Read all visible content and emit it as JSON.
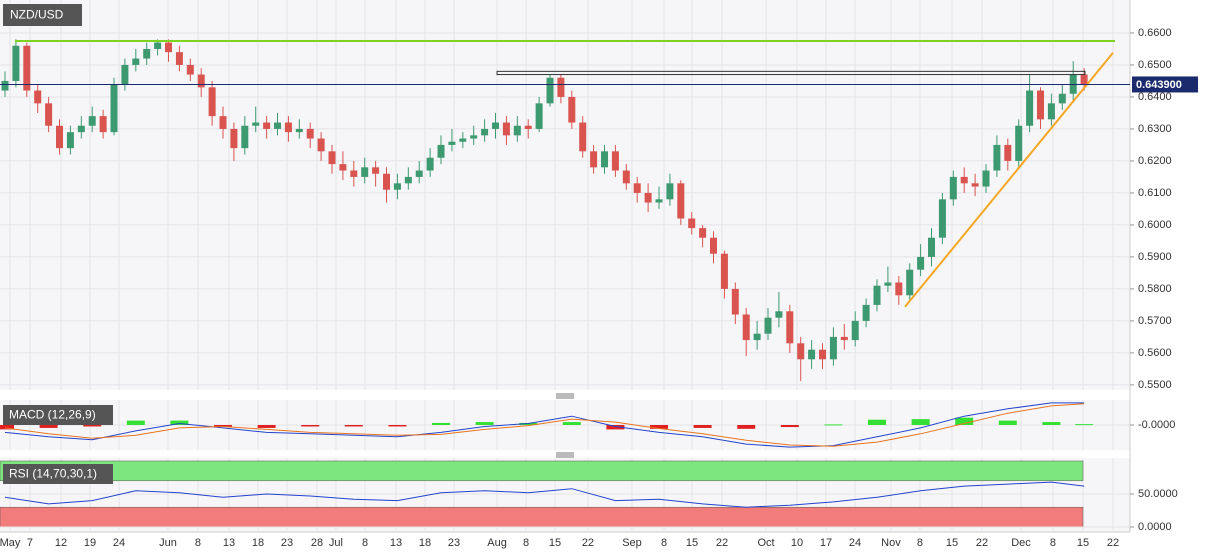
{
  "chart_data": [
    {
      "type": "candlestick",
      "title": "NZD/USD",
      "open": [
        0.642,
        0.645,
        0.656,
        0.642,
        0.638,
        0.631,
        0.624,
        0.629,
        0.631,
        0.634,
        0.629,
        0.644,
        0.65,
        0.652,
        0.655,
        0.657,
        0.654,
        0.65,
        0.647,
        0.643,
        0.634,
        0.63,
        0.624,
        0.631,
        0.632,
        0.63,
        0.632,
        0.629,
        0.63,
        0.627,
        0.623,
        0.619,
        0.617,
        0.615,
        0.618,
        0.616,
        0.611,
        0.613,
        0.615,
        0.617,
        0.621,
        0.625,
        0.626,
        0.627,
        0.628,
        0.63,
        0.632,
        0.628,
        0.631,
        0.63,
        0.638,
        0.646,
        0.64,
        0.632,
        0.623,
        0.618,
        0.623,
        0.617,
        0.613,
        0.61,
        0.607,
        0.608,
        0.613,
        0.602,
        0.599,
        0.596,
        0.591,
        0.58,
        0.572,
        0.564,
        0.566,
        0.571,
        0.573,
        0.563,
        0.558,
        0.561,
        0.558,
        0.565,
        0.564,
        0.57,
        0.575,
        0.581,
        0.582,
        0.578,
        0.586,
        0.59,
        0.596,
        0.608,
        0.615,
        0.613,
        0.612,
        0.617,
        0.625,
        0.62,
        0.631,
        0.642,
        0.633,
        0.638,
        0.641,
        0.647
      ],
      "high": [
        0.648,
        0.658,
        0.657,
        0.644,
        0.64,
        0.633,
        0.631,
        0.634,
        0.637,
        0.636,
        0.646,
        0.652,
        0.655,
        0.657,
        0.658,
        0.658,
        0.656,
        0.652,
        0.649,
        0.645,
        0.637,
        0.632,
        0.634,
        0.637,
        0.634,
        0.635,
        0.634,
        0.633,
        0.632,
        0.629,
        0.625,
        0.623,
        0.62,
        0.621,
        0.62,
        0.618,
        0.616,
        0.618,
        0.62,
        0.624,
        0.628,
        0.63,
        0.629,
        0.631,
        0.633,
        0.635,
        0.634,
        0.634,
        0.633,
        0.64,
        0.647,
        0.647,
        0.642,
        0.634,
        0.625,
        0.625,
        0.625,
        0.619,
        0.615,
        0.613,
        0.612,
        0.616,
        0.614,
        0.604,
        0.6,
        0.598,
        0.592,
        0.582,
        0.574,
        0.57,
        0.574,
        0.579,
        0.575,
        0.565,
        0.564,
        0.563,
        0.568,
        0.569,
        0.573,
        0.577,
        0.583,
        0.587,
        0.584,
        0.588,
        0.594,
        0.599,
        0.61,
        0.617,
        0.618,
        0.616,
        0.619,
        0.628,
        0.627,
        0.633,
        0.647,
        0.643,
        0.641,
        0.644,
        0.6512,
        0.649
      ],
      "low": [
        0.64,
        0.643,
        0.64,
        0.635,
        0.629,
        0.622,
        0.622,
        0.627,
        0.629,
        0.627,
        0.628,
        0.642,
        0.648,
        0.65,
        0.653,
        0.651,
        0.648,
        0.645,
        0.64,
        0.631,
        0.627,
        0.62,
        0.622,
        0.629,
        0.627,
        0.628,
        0.626,
        0.627,
        0.624,
        0.62,
        0.616,
        0.614,
        0.612,
        0.613,
        0.612,
        0.607,
        0.608,
        0.611,
        0.613,
        0.615,
        0.619,
        0.623,
        0.624,
        0.625,
        0.626,
        0.627,
        0.625,
        0.626,
        0.627,
        0.629,
        0.637,
        0.638,
        0.63,
        0.621,
        0.616,
        0.616,
        0.615,
        0.611,
        0.607,
        0.604,
        0.605,
        0.606,
        0.6,
        0.597,
        0.593,
        0.588,
        0.577,
        0.569,
        0.559,
        0.561,
        0.564,
        0.568,
        0.56,
        0.5512,
        0.555,
        0.555,
        0.556,
        0.561,
        0.562,
        0.568,
        0.573,
        0.579,
        0.575,
        0.576,
        0.584,
        0.587,
        0.594,
        0.606,
        0.61,
        0.609,
        0.61,
        0.615,
        0.617,
        0.618,
        0.629,
        0.63,
        0.631,
        0.636,
        0.639,
        0.642
      ],
      "close": [
        0.645,
        0.656,
        0.642,
        0.638,
        0.631,
        0.624,
        0.629,
        0.631,
        0.634,
        0.629,
        0.644,
        0.65,
        0.652,
        0.655,
        0.657,
        0.654,
        0.65,
        0.647,
        0.643,
        0.634,
        0.63,
        0.624,
        0.631,
        0.632,
        0.63,
        0.632,
        0.629,
        0.63,
        0.627,
        0.623,
        0.619,
        0.617,
        0.615,
        0.618,
        0.616,
        0.611,
        0.613,
        0.615,
        0.617,
        0.621,
        0.625,
        0.626,
        0.627,
        0.628,
        0.63,
        0.632,
        0.628,
        0.631,
        0.63,
        0.638,
        0.646,
        0.64,
        0.632,
        0.623,
        0.618,
        0.623,
        0.617,
        0.613,
        0.61,
        0.607,
        0.608,
        0.613,
        0.602,
        0.599,
        0.596,
        0.591,
        0.58,
        0.572,
        0.564,
        0.566,
        0.571,
        0.573,
        0.563,
        0.558,
        0.561,
        0.558,
        0.565,
        0.564,
        0.57,
        0.575,
        0.581,
        0.582,
        0.578,
        0.586,
        0.59,
        0.596,
        0.608,
        0.615,
        0.613,
        0.612,
        0.617,
        0.625,
        0.62,
        0.631,
        0.642,
        0.633,
        0.638,
        0.641,
        0.647,
        0.6439
      ],
      "up_color": "#3d9970",
      "down_color": "#d9534f",
      "xlim": [
        -0.46,
        103.21
      ],
      "xticks": [
        {
          "value": 0.46,
          "label": "May"
        },
        {
          "value": 2.29,
          "label": "7"
        },
        {
          "value": 5.14,
          "label": "12"
        },
        {
          "value": 7.8,
          "label": "19"
        },
        {
          "value": 10.46,
          "label": "24"
        },
        {
          "value": 14.95,
          "label": "Jun"
        },
        {
          "value": 17.7,
          "label": "8"
        },
        {
          "value": 20.55,
          "label": "13"
        },
        {
          "value": 23.21,
          "label": "18"
        },
        {
          "value": 25.87,
          "label": "23"
        },
        {
          "value": 28.62,
          "label": "28"
        },
        {
          "value": 30.36,
          "label": "Jul"
        },
        {
          "value": 33.03,
          "label": "8"
        },
        {
          "value": 35.87,
          "label": "13"
        },
        {
          "value": 38.53,
          "label": "18"
        },
        {
          "value": 41.19,
          "label": "23"
        },
        {
          "value": 45.14,
          "label": "Aug"
        },
        {
          "value": 47.8,
          "label": "8"
        },
        {
          "value": 50.46,
          "label": "15"
        },
        {
          "value": 53.48,
          "label": "22"
        },
        {
          "value": 57.52,
          "label": "Sep"
        },
        {
          "value": 60.46,
          "label": "8"
        },
        {
          "value": 63.03,
          "label": "15"
        },
        {
          "value": 65.78,
          "label": "22"
        },
        {
          "value": 69.82,
          "label": "Oct"
        },
        {
          "value": 72.66,
          "label": "10"
        },
        {
          "value": 75.32,
          "label": "17"
        },
        {
          "value": 77.98,
          "label": "24"
        },
        {
          "value": 81.28,
          "label": "Nov"
        },
        {
          "value": 83.94,
          "label": "8"
        },
        {
          "value": 86.88,
          "label": "15"
        },
        {
          "value": 89.63,
          "label": "22"
        },
        {
          "value": 93.21,
          "label": "Dec"
        },
        {
          "value": 96.14,
          "label": "8"
        },
        {
          "value": 98.9,
          "label": "15"
        },
        {
          "value": 101.65,
          "label": "22"
        }
      ],
      "ylim": [
        0.5484,
        0.6703
      ],
      "yticks": [
        {
          "value": 0.55,
          "label": "0.5500"
        },
        {
          "value": 0.56,
          "label": "0.5600"
        },
        {
          "value": 0.57,
          "label": "0.5700"
        },
        {
          "value": 0.58,
          "label": "0.5800"
        },
        {
          "value": 0.59,
          "label": "0.5900"
        },
        {
          "value": 0.6,
          "label": "0.6000"
        },
        {
          "value": 0.61,
          "label": "0.6100"
        },
        {
          "value": 0.62,
          "label": "0.6200"
        },
        {
          "value": 0.63,
          "label": "0.6300"
        },
        {
          "value": 0.64,
          "label": "0.6400"
        },
        {
          "value": 0.65,
          "label": "0.6500"
        },
        {
          "value": 0.66,
          "label": "0.6600"
        }
      ],
      "grid": true,
      "last_price": {
        "value": 0.6439,
        "label": "0.643900"
      },
      "last_price_color": "#1a2a6c",
      "resistance": {
        "x": [
          0.92,
          101.83
        ],
        "y": [
          0.6575,
          0.6575
        ],
        "color": "#7ed321"
      },
      "zone": {
        "x": [
          45.14,
          99.08
        ],
        "y": [
          0.647,
          0.648
        ],
        "color": "#333333"
      },
      "trendline": {
        "x": [
          82.57,
          101.65
        ],
        "y": [
          0.5744,
          0.6538
        ],
        "color": "#f5a623"
      }
    },
    {
      "type": "macd",
      "title": "MACD (12,26,9)",
      "x": [
        0,
        4,
        8,
        12,
        16,
        20,
        24,
        28,
        32,
        36,
        40,
        44,
        48,
        52,
        56,
        60,
        64,
        68,
        72,
        76,
        80,
        84,
        88,
        92,
        96,
        99
      ],
      "series": [
        {
          "color": "#2244cc",
          "values": [
            -0.0025,
            -0.004,
            -0.005,
            -0.002,
            0.0005,
            -0.001,
            -0.0025,
            -0.003,
            -0.0035,
            -0.004,
            -0.0025,
            -0.0005,
            0.0005,
            0.003,
            -0.0005,
            -0.0025,
            -0.004,
            -0.0065,
            -0.0075,
            -0.007,
            -0.004,
            -0.001,
            0.003,
            0.0055,
            0.0075,
            0.0075
          ]
        },
        {
          "color": "#e8741e",
          "values": [
            -0.001,
            -0.003,
            -0.0045,
            -0.0035,
            -0.001,
            -0.0005,
            -0.0015,
            -0.0025,
            -0.003,
            -0.0035,
            -0.0032,
            -0.0015,
            -0.0002,
            0.002,
            0.001,
            -0.0012,
            -0.003,
            -0.0052,
            -0.0068,
            -0.0072,
            -0.0058,
            -0.003,
            0.0005,
            0.004,
            0.0065,
            0.0072
          ]
        }
      ],
      "histogram": [
        -0.0015,
        -0.001,
        -0.0005,
        0.0015,
        0.0015,
        -0.0005,
        -0.001,
        -0.0005,
        -0.0005,
        -0.0005,
        0.0007,
        0.001,
        0.0007,
        0.001,
        -0.0015,
        -0.0013,
        -0.001,
        -0.0013,
        -0.0007,
        0.0002,
        0.0018,
        0.002,
        0.0025,
        0.0015,
        0.001,
        0.0003
      ],
      "histogram_up_color": "#33e033",
      "histogram_down_color": "#e02020",
      "ylim": [
        -0.0085,
        0.0085
      ],
      "yticks": [
        {
          "value": 0,
          "label": "-0.0000"
        }
      ]
    },
    {
      "type": "rsi",
      "title": "RSI (14,70,30,1)",
      "x": [
        0,
        4,
        8,
        12,
        16,
        20,
        24,
        28,
        32,
        36,
        40,
        44,
        48,
        52,
        56,
        60,
        64,
        68,
        72,
        76,
        80,
        84,
        88,
        92,
        96,
        99
      ],
      "values": [
        45,
        35,
        40,
        55,
        52,
        45,
        50,
        47,
        42,
        40,
        52,
        55,
        52,
        58,
        40,
        42,
        35,
        30,
        33,
        38,
        45,
        55,
        62,
        65,
        68,
        62
      ],
      "color": "#2244cc",
      "overbought_band": [
        70,
        100
      ],
      "overbought_color": "#7ee67e",
      "oversold_band": [
        0,
        30
      ],
      "oversold_color": "#f27c7c",
      "ylim": [
        -4.55,
        104.55
      ],
      "yticks": [
        {
          "value": 50,
          "label": "50.0000"
        },
        {
          "value": 0,
          "label": "0.0000"
        }
      ]
    }
  ]
}
